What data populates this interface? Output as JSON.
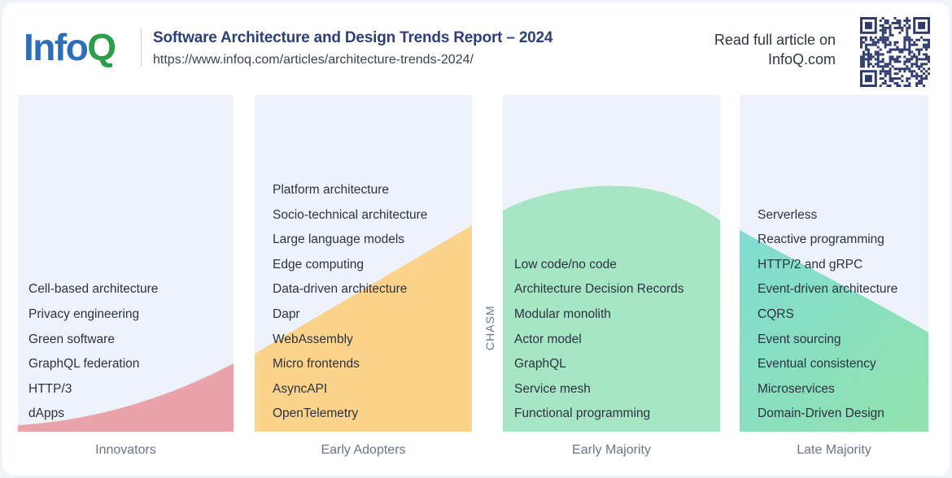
{
  "header": {
    "logo_main": "Info",
    "logo_accent": "Q",
    "title": "Software Architecture and Design Trends Report – 2024",
    "url": "https://www.infoq.com/articles/architecture-trends-2024/",
    "read_line1": "Read full article on",
    "read_line2": "InfoQ.com"
  },
  "chasm_label": "CHASM",
  "stages": [
    {
      "name": "Innovators",
      "items": [
        "Cell-based architecture",
        "Privacy engineering",
        "Green software",
        "GraphQL federation",
        "HTTP/3",
        "dApps"
      ]
    },
    {
      "name": "Early Adopters",
      "items": [
        "Platform architecture",
        "Socio-technical architecture",
        "Large language models",
        "Edge computing",
        "Data-driven architecture",
        "Dapr",
        "WebAssembly",
        "Micro frontends",
        "AsyncAPI",
        "OpenTelemetry"
      ]
    },
    {
      "name": "Early Majority",
      "items": [
        "Low code/no code",
        "Architecture Decision Records",
        "Modular monolith",
        "Actor model",
        "GraphQL",
        "Service mesh",
        "Functional programming"
      ]
    },
    {
      "name": "Late Majority",
      "items": [
        "Serverless",
        "Reactive programming",
        "HTTP/2 and gRPC",
        "Event-driven architecture",
        "CQRS",
        "Event sourcing",
        "Eventual consistency",
        "Microservices",
        "Domain-Driven Design"
      ]
    }
  ],
  "colors": {
    "innovators": "#eaa3ab",
    "early_adopters": "#fbd38a",
    "early_majority": "#a6e6c4",
    "late_majority_start": "#7fdcd0",
    "late_majority_end": "#93e2ae"
  }
}
